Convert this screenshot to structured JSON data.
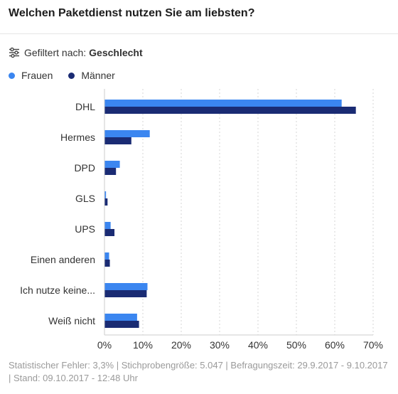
{
  "header": {
    "title": "Welchen Paketdienst nutzen Sie am liebsten?"
  },
  "filter": {
    "icon": "sliders-icon",
    "prefix": "Gefiltert nach:",
    "value": "Geschlecht"
  },
  "legend": {
    "items": [
      {
        "label": "Frauen",
        "color": "#3b86f0"
      },
      {
        "label": "Männer",
        "color": "#1a2b73"
      }
    ]
  },
  "chart_data": {
    "type": "bar",
    "orientation": "horizontal",
    "categories": [
      "DHL",
      "Hermes",
      "DPD",
      "GLS",
      "UPS",
      "Einen anderen",
      "Ich nutze keine...",
      "Weiß nicht"
    ],
    "series": [
      {
        "name": "Frauen",
        "color": "#3b86f0",
        "values": [
          61.8,
          11.8,
          4.0,
          0.4,
          1.6,
          1.2,
          11.2,
          8.5
        ]
      },
      {
        "name": "Männer",
        "color": "#1a2b73",
        "values": [
          65.5,
          7.0,
          3.0,
          0.8,
          2.6,
          1.4,
          11.0,
          9.0
        ]
      }
    ],
    "xlim": [
      0,
      70
    ],
    "xticks": [
      "0%",
      "10%",
      "20%",
      "30%",
      "40%",
      "50%",
      "60%",
      "70%"
    ],
    "grid": true
  },
  "footer": {
    "text": "Statistischer Fehler: 3,3% | Stichprobengröße: 5.047 | Befragungszeit: 29.9.2017 - 9.10.2017 | Stand: 09.10.2017 - 12:48 Uhr"
  }
}
